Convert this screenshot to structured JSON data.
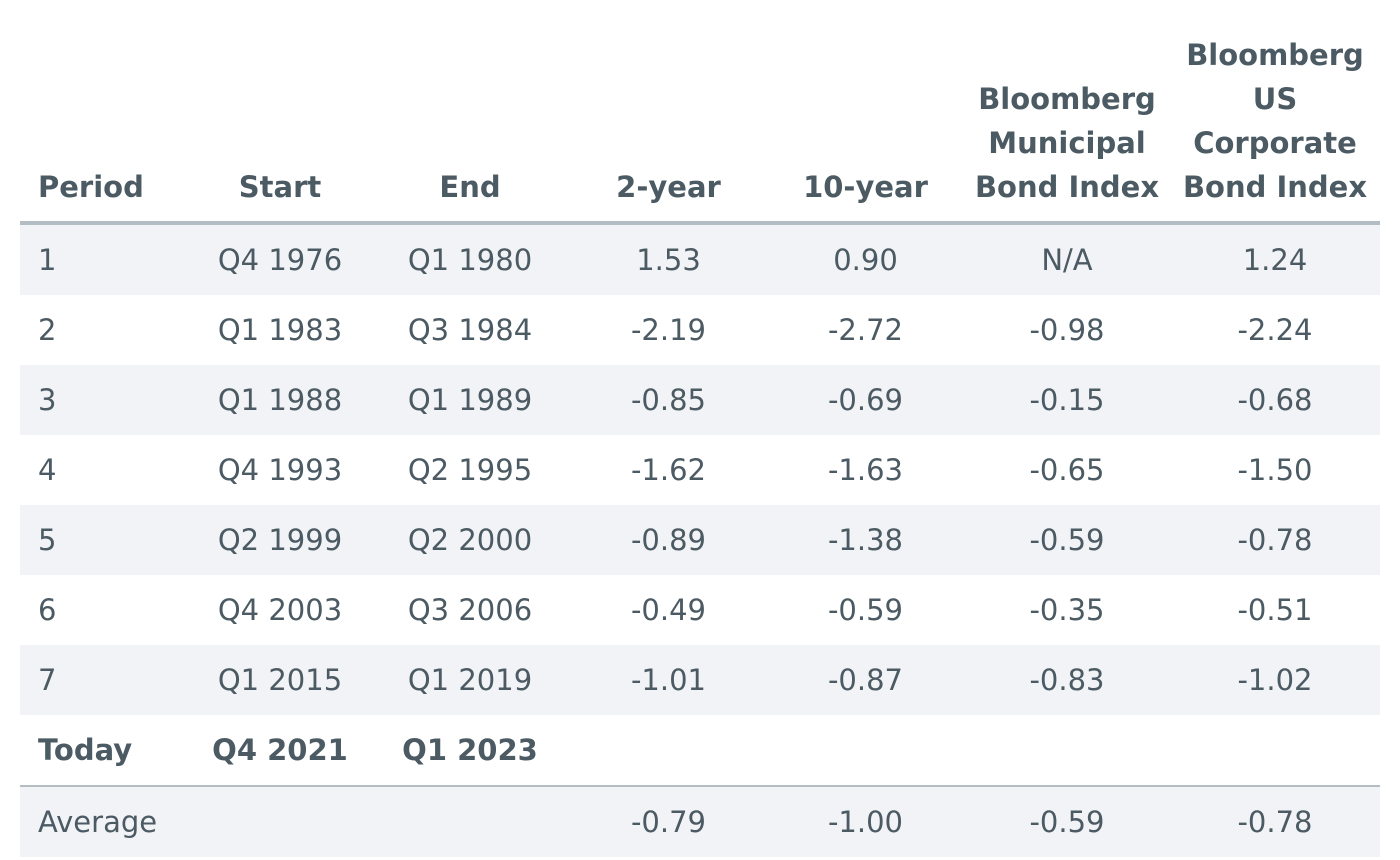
{
  "columns": [
    "Period",
    "Start",
    "End",
    "2-year",
    "10-year",
    "Bloomberg Municipal Bond Index",
    "Bloomberg US Corporate Bond Index"
  ],
  "header_lines": {
    "municipal": [
      "Bloomberg",
      "Municipal",
      "Bond Index"
    ],
    "corporate": [
      "Bloomberg",
      "US",
      "Corporate",
      "Bond Index"
    ]
  },
  "rows": [
    {
      "period": "1",
      "start": "Q4 1976",
      "end": "Q1 1980",
      "two_year": "1.53",
      "ten_year": "0.90",
      "municipal": "N/A",
      "corporate": "1.24"
    },
    {
      "period": "2",
      "start": "Q1 1983",
      "end": "Q3 1984",
      "two_year": "-2.19",
      "ten_year": "-2.72",
      "municipal": "-0.98",
      "corporate": "-2.24"
    },
    {
      "period": "3",
      "start": "Q1 1988",
      "end": "Q1 1989",
      "two_year": "-0.85",
      "ten_year": "-0.69",
      "municipal": "-0.15",
      "corporate": "-0.68"
    },
    {
      "period": "4",
      "start": "Q4 1993",
      "end": "Q2 1995",
      "two_year": "-1.62",
      "ten_year": "-1.63",
      "municipal": "-0.65",
      "corporate": "-1.50"
    },
    {
      "period": "5",
      "start": "Q2 1999",
      "end": "Q2 2000",
      "two_year": "-0.89",
      "ten_year": "-1.38",
      "municipal": "-0.59",
      "corporate": "-0.78"
    },
    {
      "period": "6",
      "start": "Q4 2003",
      "end": "Q3 2006",
      "two_year": "-0.49",
      "ten_year": "-0.59",
      "municipal": "-0.35",
      "corporate": "-0.51"
    },
    {
      "period": "7",
      "start": "Q1 2015",
      "end": "Q1 2019",
      "two_year": "-1.01",
      "ten_year": "-0.87",
      "municipal": "-0.83",
      "corporate": "-1.02"
    }
  ],
  "today": {
    "period": "Today",
    "start": "Q4 2021",
    "end": "Q1 2023"
  },
  "average": {
    "label": "Average",
    "two_year": "-0.79",
    "ten_year": "-1.00",
    "municipal": "-0.59",
    "corporate": "-0.78"
  },
  "colors": {
    "text": "#4c5b63",
    "row_shade": "#f1f3f6",
    "rule": "#b4bdc3"
  }
}
